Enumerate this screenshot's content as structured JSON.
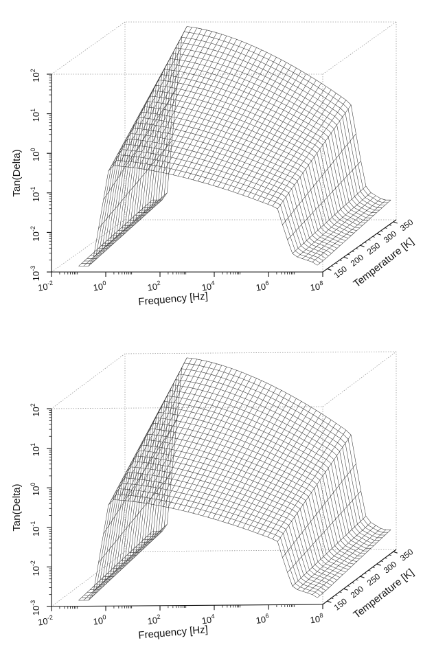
{
  "colors": {
    "ink": "#111111",
    "box": "#9a9a9a",
    "mesh": "#333333",
    "surface": "#ffffff"
  },
  "chart_data": [
    {
      "type": "surface3d",
      "panel": "top",
      "xlabel": "Frequency [Hz]",
      "ylabel": "Temperature [K]",
      "zlabel": "Tan(Delta)",
      "x_scale": "log",
      "z_scale": "log",
      "x_ticks": [
        {
          "value": 0.01,
          "base": "10",
          "exp": "-2"
        },
        {
          "value": 1,
          "base": "10",
          "exp": "0"
        },
        {
          "value": 100,
          "base": "10",
          "exp": "2"
        },
        {
          "value": 10000,
          "base": "10",
          "exp": "4"
        },
        {
          "value": 1000000,
          "base": "10",
          "exp": "6"
        },
        {
          "value": 100000000,
          "base": "10",
          "exp": "8"
        }
      ],
      "y_ticks": [
        "150",
        "200",
        "250",
        "300",
        "350"
      ],
      "z_ticks": [
        {
          "value": 0.001,
          "base": "10",
          "exp": "-3"
        },
        {
          "value": 0.01,
          "base": "10",
          "exp": "-2"
        },
        {
          "value": 0.1,
          "base": "10",
          "exp": "-1"
        },
        {
          "value": 1,
          "base": "10",
          "exp": "0"
        },
        {
          "value": 10,
          "base": "10",
          "exp": "1"
        },
        {
          "value": 100,
          "base": "10",
          "exp": "2"
        }
      ],
      "xlim": [
        0.01,
        100000000
      ],
      "ylim": [
        150,
        350
      ],
      "zlim": [
        0.001,
        100
      ],
      "peaks": [
        {
          "logf_start": 0.0,
          "logf_end": 6.8,
          "log_tan_high": 1.9,
          "log_tan_low": -0.3
        },
        {
          "logf_start": 0.0,
          "logf_end": 8.2,
          "log_tan_high": -0.5,
          "log_tan_low": -2.8
        }
      ]
    },
    {
      "type": "surface3d",
      "panel": "bottom",
      "xlabel": "Frequency [Hz]",
      "ylabel": "Temperature [K]",
      "zlabel": "Tan(Delta)",
      "x_scale": "log",
      "z_scale": "log",
      "x_ticks": [
        {
          "value": 0.01,
          "base": "10",
          "exp": "-2"
        },
        {
          "value": 1,
          "base": "10",
          "exp": "0"
        },
        {
          "value": 100,
          "base": "10",
          "exp": "2"
        },
        {
          "value": 10000,
          "base": "10",
          "exp": "4"
        },
        {
          "value": 1000000,
          "base": "10",
          "exp": "6"
        },
        {
          "value": 100000000,
          "base": "10",
          "exp": "8"
        }
      ],
      "y_ticks": [
        "150",
        "200",
        "250",
        "300",
        "350"
      ],
      "z_ticks": [
        {
          "value": 0.001,
          "base": "10",
          "exp": "-3"
        },
        {
          "value": 0.01,
          "base": "10",
          "exp": "-2"
        },
        {
          "value": 0.1,
          "base": "10",
          "exp": "-1"
        },
        {
          "value": 1,
          "base": "10",
          "exp": "0"
        },
        {
          "value": 10,
          "base": "10",
          "exp": "1"
        },
        {
          "value": 100,
          "base": "10",
          "exp": "2"
        }
      ],
      "xlim": [
        0.01,
        100000000
      ],
      "ylim": [
        150,
        350
      ],
      "zlim": [
        0.001,
        100
      ],
      "peaks": [
        {
          "logf_start": 0.0,
          "logf_end": 6.8,
          "log_tan_high": 1.9,
          "log_tan_low": -0.3
        },
        {
          "logf_start": 0.0,
          "logf_end": 4.4,
          "log_tan_high": 0.6,
          "log_tan_low": 0.0
        },
        {
          "logf_start": 0.0,
          "logf_end": 8.2,
          "log_tan_high": -0.5,
          "log_tan_low": -2.8
        }
      ]
    }
  ]
}
